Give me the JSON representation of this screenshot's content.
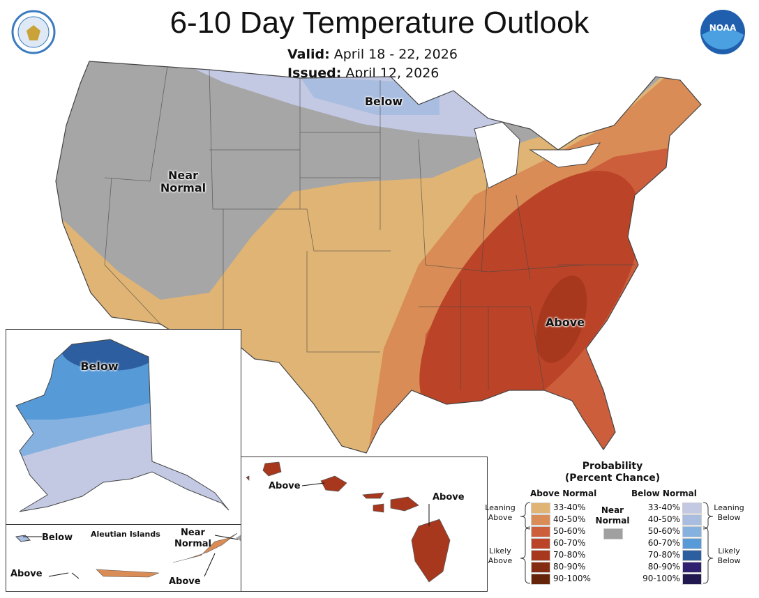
{
  "header": {
    "title": "6-10 Day Temperature Outlook",
    "valid_label": "Valid:",
    "valid_value": "April 18 - 22, 2026",
    "issued_label": "Issued:",
    "issued_value": "April 12, 2026"
  },
  "logos": {
    "left": "Department of Commerce seal",
    "right": "NOAA"
  },
  "map_labels": {
    "below": "Below",
    "near_normal_1": "Near",
    "near_normal_2": "Normal",
    "above": "Above"
  },
  "alaska": {
    "below": "Below"
  },
  "aleutians": {
    "title": "Aleutian Islands",
    "below": "Below",
    "above_left": "Above",
    "near_1": "Near",
    "near_2": "Normal",
    "above_right": "Above"
  },
  "hawaii": {
    "above_left": "Above",
    "above_right": "Above"
  },
  "legend": {
    "title_1": "Probability",
    "title_2": "(Percent Chance)",
    "above_header": "Above Normal",
    "below_header": "Below Normal",
    "near_1": "Near",
    "near_2": "Normal",
    "near_color": "#a0a0a0",
    "leaning_above_1": "Leaning",
    "leaning_above_2": "Above",
    "likely_above_1": "Likely",
    "likely_above_2": "Above",
    "leaning_below_1": "Leaning",
    "leaning_below_2": "Below",
    "likely_below_1": "Likely",
    "likely_below_2": "Below",
    "above": [
      {
        "range": "33-40%",
        "color": "#e0b474"
      },
      {
        "range": "40-50%",
        "color": "#d98c55"
      },
      {
        "range": "50-60%",
        "color": "#cc5e3c"
      },
      {
        "range": "60-70%",
        "color": "#bb4428"
      },
      {
        "range": "70-80%",
        "color": "#a8381d"
      },
      {
        "range": "80-90%",
        "color": "#852b12"
      },
      {
        "range": "90-100%",
        "color": "#65240a"
      }
    ],
    "below": [
      {
        "range": "33-40%",
        "color": "#c3c9e3"
      },
      {
        "range": "40-50%",
        "color": "#a9bde0"
      },
      {
        "range": "50-60%",
        "color": "#85b1e0"
      },
      {
        "range": "60-70%",
        "color": "#579ad8"
      },
      {
        "range": "70-80%",
        "color": "#2d5e9f"
      },
      {
        "range": "80-90%",
        "color": "#302070"
      },
      {
        "range": "90-100%",
        "color": "#20184f"
      }
    ]
  }
}
